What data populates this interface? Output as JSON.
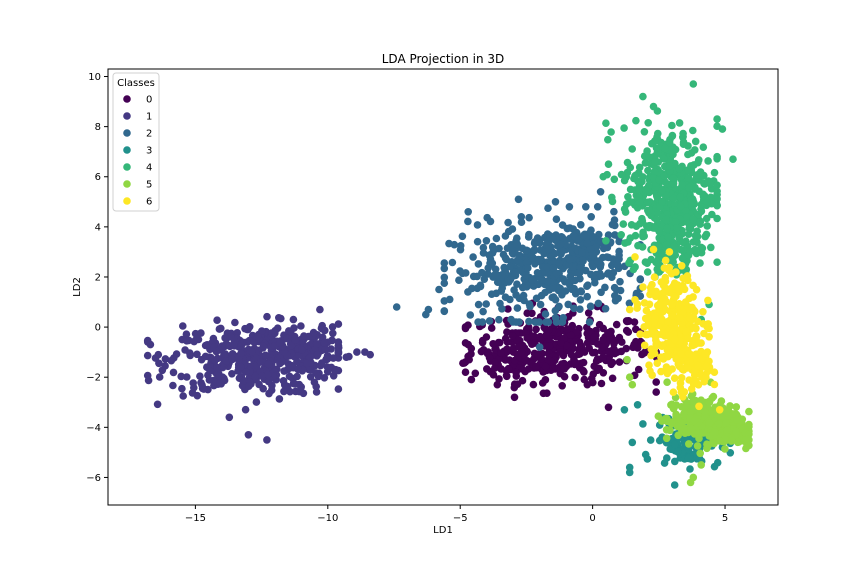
{
  "chart_data": {
    "type": "scatter",
    "title": "LDA Projection in 3D",
    "xlabel": "LD1",
    "ylabel": "LD2",
    "xlim": [
      -18.3,
      7.0
    ],
    "ylim": [
      -7.1,
      10.3
    ],
    "xticks": [
      -15,
      -10,
      -5,
      0,
      5
    ],
    "yticks": [
      -6,
      -4,
      -2,
      0,
      2,
      4,
      6,
      8,
      10
    ],
    "grid": false,
    "legend": {
      "title": "Classes",
      "position": "upper-left"
    },
    "series": [
      {
        "name": "0",
        "color": "#440154",
        "clusters": [
          {
            "center": [
              -1.2,
              -0.8
            ],
            "spread": [
              1.7,
              0.7
            ],
            "count": 340,
            "range_x": [
              -4.8,
              2.4
            ],
            "range_y": [
              -2.8,
              1.0
            ]
          },
          {
            "center": [
              -2.8,
              -1.4
            ],
            "spread": [
              1.0,
              0.5
            ],
            "count": 60,
            "range_x": [
              -4.9,
              0.5
            ],
            "range_y": [
              -2.6,
              -0.2
            ]
          }
        ],
        "points": [
          [
            -4.7,
            -0.7
          ],
          [
            -4.8,
            -1.8
          ],
          [
            -3.6,
            -2.3
          ],
          [
            -0.2,
            -2.3
          ],
          [
            0.6,
            -3.2
          ],
          [
            1.1,
            -0.6
          ]
        ]
      },
      {
        "name": "1",
        "color": "#443983",
        "clusters": [
          {
            "center": [
              -12.8,
              -1.3
            ],
            "spread": [
              1.6,
              0.7
            ],
            "count": 420,
            "range_x": [
              -16.8,
              -9.6
            ],
            "range_y": [
              -3.6,
              0.6
            ]
          },
          {
            "center": [
              -10.8,
              -0.8
            ],
            "spread": [
              0.7,
              0.4
            ],
            "count": 90,
            "range_x": [
              -12.0,
              -9.0
            ],
            "range_y": [
              -1.8,
              0.2
            ]
          }
        ],
        "points": [
          [
            -16.7,
            -0.7
          ],
          [
            -16.4,
            -1.1
          ],
          [
            -12.3,
            -4.5
          ],
          [
            -13.0,
            -4.3
          ],
          [
            -9.6,
            -1.0
          ],
          [
            -8.9,
            -1.0
          ],
          [
            -8.6,
            -1.0
          ],
          [
            -8.4,
            -1.1
          ],
          [
            -10.3,
            0.7
          ],
          [
            -11.3,
            0.3
          ],
          [
            -9.3,
            -1.2
          ],
          [
            -9.7,
            -1.7
          ]
        ]
      },
      {
        "name": "2",
        "color": "#31688e",
        "clusters": [
          {
            "center": [
              -2.0,
              2.2
            ],
            "spread": [
              1.7,
              0.9
            ],
            "count": 360,
            "range_x": [
              -5.6,
              1.8
            ],
            "range_y": [
              0.2,
              4.4
            ]
          },
          {
            "center": [
              -0.5,
              3.0
            ],
            "spread": [
              0.8,
              0.7
            ],
            "count": 120,
            "range_x": [
              -2.5,
              1.0
            ],
            "range_y": [
              1.2,
              4.8
            ]
          }
        ],
        "points": [
          [
            -7.4,
            0.8
          ],
          [
            -6.3,
            0.5
          ],
          [
            -6.2,
            0.7
          ],
          [
            -4.7,
            4.6
          ],
          [
            -2.8,
            5.1
          ],
          [
            -1.4,
            5.0
          ],
          [
            -5.8,
            1.5
          ],
          [
            -2.0,
            -0.8
          ],
          [
            0.3,
            5.4
          ]
        ]
      },
      {
        "name": "3",
        "color": "#21918c",
        "clusters": [
          {
            "center": [
              3.6,
              -4.5
            ],
            "spread": [
              0.6,
              0.5
            ],
            "count": 140,
            "range_x": [
              1.9,
              5.2
            ],
            "range_y": [
              -5.8,
              -3.2
            ]
          }
        ],
        "points": [
          [
            1.2,
            -3.3
          ],
          [
            1.5,
            -4.6
          ],
          [
            1.4,
            -5.6
          ],
          [
            1.4,
            -5.8
          ],
          [
            3.1,
            -6.3
          ],
          [
            1.7,
            -3.1
          ]
        ]
      },
      {
        "name": "4",
        "color": "#35b779",
        "clusters": [
          {
            "center": [
              2.9,
              5.4
            ],
            "spread": [
              0.9,
              1.3
            ],
            "count": 420,
            "range_x": [
              0.5,
              4.7
            ],
            "range_y": [
              2.0,
              8.8
            ]
          },
          {
            "center": [
              3.0,
              3.2
            ],
            "spread": [
              0.5,
              0.6
            ],
            "count": 80,
            "range_x": [
              1.6,
              4.1
            ],
            "range_y": [
              2.2,
              4.3
            ]
          }
        ],
        "points": [
          [
            3.8,
            9.7
          ],
          [
            1.9,
            9.2
          ],
          [
            2.3,
            8.8
          ],
          [
            4.7,
            8.3
          ],
          [
            4.9,
            7.9
          ],
          [
            5.3,
            6.7
          ],
          [
            4.7,
            6.8
          ],
          [
            4.3,
            3.7
          ],
          [
            4.1,
            0.3
          ],
          [
            4.4,
            0.9
          ],
          [
            0.4,
            6.0
          ],
          [
            0.6,
            6.5
          ]
        ]
      },
      {
        "name": "5",
        "color": "#90d743",
        "clusters": [
          {
            "center": [
              4.2,
              -3.7
            ],
            "spread": [
              0.7,
              0.45
            ],
            "count": 260,
            "range_x": [
              2.2,
              5.9
            ],
            "range_y": [
              -5.2,
              -2.2
            ]
          },
          {
            "center": [
              5.2,
              -4.3
            ],
            "spread": [
              0.4,
              0.25
            ],
            "count": 70,
            "range_x": [
              4.3,
              5.9
            ],
            "range_y": [
              -5.1,
              -3.7
            ]
          }
        ],
        "points": [
          [
            1.3,
            -1.3
          ],
          [
            1.5,
            -2.3
          ],
          [
            1.4,
            -2.0
          ],
          [
            3.8,
            -6.0
          ],
          [
            3.7,
            -6.2
          ],
          [
            4.1,
            -5.5
          ]
        ]
      },
      {
        "name": "6",
        "color": "#fde725",
        "clusters": [
          {
            "center": [
              3.0,
              0.2
            ],
            "spread": [
              0.55,
              1.0
            ],
            "count": 300,
            "range_x": [
              1.6,
              4.4
            ],
            "range_y": [
              -2.6,
              2.9
            ]
          },
          {
            "center": [
              3.8,
              -1.6
            ],
            "spread": [
              0.35,
              0.5
            ],
            "count": 80,
            "range_x": [
              3.1,
              4.6
            ],
            "range_y": [
              -3.2,
              -0.4
            ]
          }
        ],
        "points": [
          [
            1.4,
            0.7
          ],
          [
            1.6,
            2.8
          ],
          [
            2.3,
            3.1
          ],
          [
            2.9,
            3.0
          ],
          [
            4.8,
            -3.3
          ],
          [
            4.6,
            -1.8
          ]
        ]
      }
    ]
  }
}
